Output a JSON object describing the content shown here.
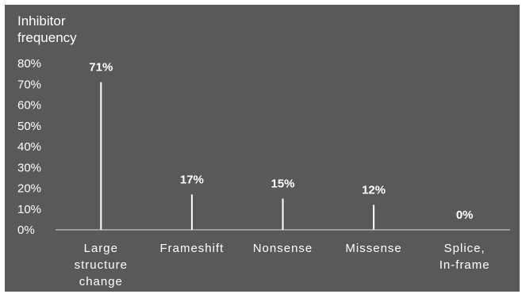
{
  "chart_data": {
    "type": "bar",
    "title": "",
    "ylabel": "Inhibitor frequency",
    "xlabel": "",
    "categories": [
      "Large structure change",
      "Frameshift",
      "Nonsense",
      "Missense",
      "Splice, In-frame"
    ],
    "category_lines": [
      [
        "Large",
        "structure",
        "change"
      ],
      [
        "Frameshift"
      ],
      [
        "Nonsense"
      ],
      [
        "Missense"
      ],
      [
        "Splice,",
        "In-frame"
      ]
    ],
    "values": [
      71,
      17,
      15,
      12,
      0
    ],
    "data_labels": [
      "71%",
      "17%",
      "15%",
      "12%",
      "0%"
    ],
    "ylim": [
      0,
      80
    ],
    "yticks": [
      0,
      10,
      20,
      30,
      40,
      50,
      60,
      70,
      80
    ],
    "ytick_labels": [
      "0%",
      "10%",
      "20%",
      "30%",
      "40%",
      "50%",
      "60%",
      "70%",
      "80%"
    ],
    "grid": false,
    "legend": "none",
    "colors": {
      "background": "#595959",
      "bar": "#ffffff",
      "text": "#ffffff",
      "axis": "#d9d9d9"
    }
  }
}
